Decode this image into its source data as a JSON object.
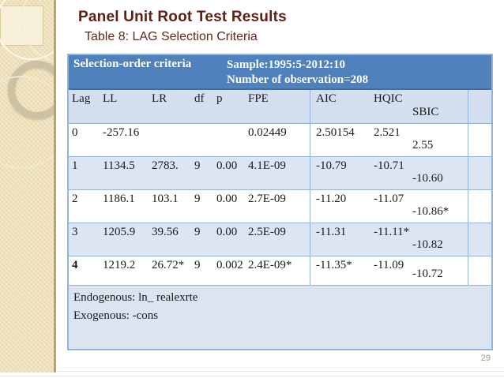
{
  "slide": {
    "title": "Panel Unit Root Test Results",
    "subtitle": "Table 8: LAG Selection Criteria",
    "page_number": "29"
  },
  "table": {
    "header": {
      "left": "Selection-order criteria",
      "sample": "Sample:1995:5-2012:10",
      "observations": "Number of observation=208"
    },
    "columns": [
      "Lag",
      "LL",
      "LR",
      "df",
      "p",
      "FPE",
      "AIC",
      "HQIC",
      "SBIC"
    ],
    "rows": [
      [
        "0",
        "-257.16",
        "",
        "",
        "",
        "0.02449",
        "2.50154",
        "2.521",
        "2.55"
      ],
      [
        "1",
        "1134.5",
        "2783.",
        "9",
        "0.00",
        "4.1E-09",
        "-10.79",
        "-10.71",
        "-10.60"
      ],
      [
        "2",
        "1186.1",
        "103.1",
        "9",
        "0.00",
        "2.7E-09",
        "-11.20",
        "-11.07",
        "-10.86*"
      ],
      [
        "3",
        "1205.9",
        "39.56",
        "9",
        "0.00",
        "2.5E-09",
        "-11.31",
        "-11.11*",
        "-10.82"
      ],
      [
        "4",
        "1219.2",
        "26.72*",
        "9",
        "0.002",
        "2.4E-09*",
        "-11.35*",
        "-11.09",
        "-10.72"
      ]
    ],
    "footer_lines": [
      "Endogenous: ln_ realexrte",
      "Exogenous: -cons"
    ]
  },
  "colors": {
    "header_blue": "#4f81bd",
    "row_light_blue": "#dce6f2",
    "table_border_blue": "#95b3d7",
    "title_maroon": "#5e2014",
    "sidebar_beige": "#e9d9ac"
  }
}
